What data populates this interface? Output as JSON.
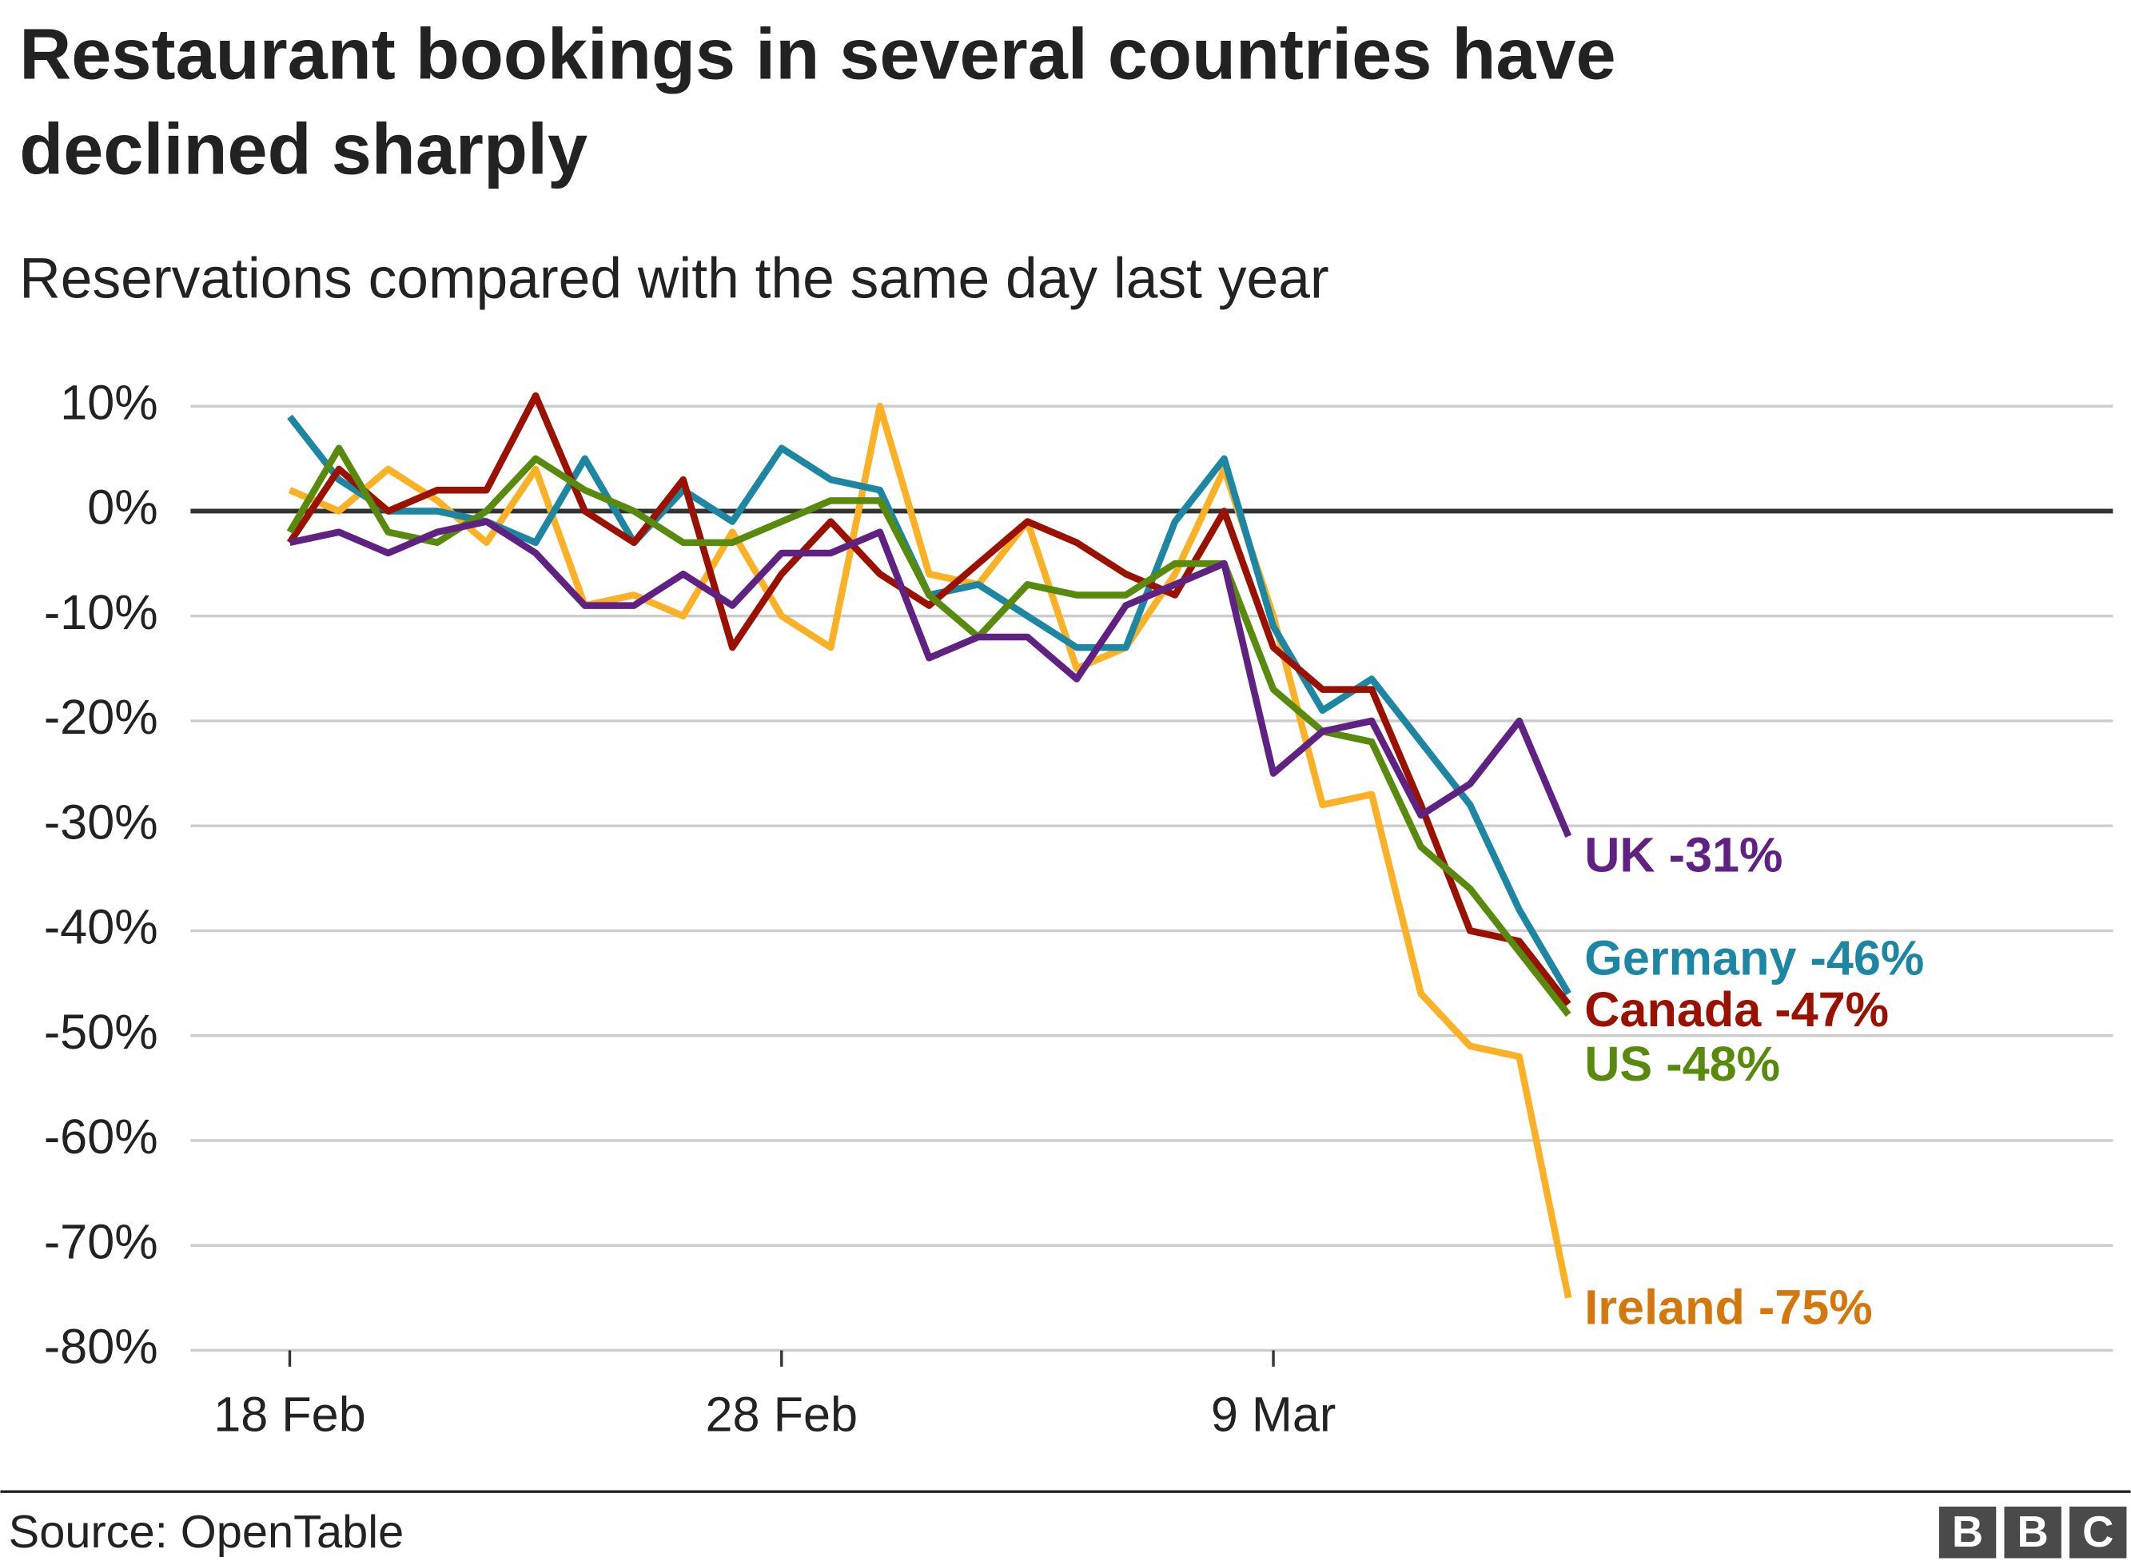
{
  "chart_data": {
    "type": "line",
    "title": [
      "Restaurant bookings in several countries have",
      "declined sharply"
    ],
    "subtitle": "Reservations compared with the same day last year",
    "categories": [
      "18 Feb",
      null,
      null,
      null,
      null,
      null,
      null,
      null,
      null,
      null,
      "28 Feb",
      null,
      null,
      null,
      null,
      null,
      null,
      null,
      null,
      null,
      "9 Mar",
      null,
      null,
      null,
      null,
      null,
      null
    ],
    "ylim": [
      -80,
      10
    ],
    "yticks": [
      {
        "value": 10,
        "label": "10%"
      },
      {
        "value": 0,
        "label": "0%"
      },
      {
        "value": -10,
        "label": "-10%"
      },
      {
        "value": -20,
        "label": "-20%"
      },
      {
        "value": -30,
        "label": "-30%"
      },
      {
        "value": -40,
        "label": "-40%"
      },
      {
        "value": -50,
        "label": "-50%"
      },
      {
        "value": -60,
        "label": "-60%"
      },
      {
        "value": -70,
        "label": "-70%"
      },
      {
        "value": -80,
        "label": "-80%"
      }
    ],
    "grid": true,
    "series": [
      {
        "name": "Ireland",
        "label": "Ireland -75%",
        "color": "#fbb125",
        "label_color": "#d4780e",
        "values": [
          2,
          0,
          4,
          1,
          -3,
          4,
          -9,
          -8,
          -10,
          -2,
          -10,
          -13,
          10,
          -6,
          -7,
          -1,
          -15,
          -13,
          -6,
          4,
          -10,
          -28,
          -27,
          -46,
          -51,
          -52,
          -75
        ]
      },
      {
        "name": "Germany",
        "label": "Germany -46%",
        "color": "#1d87a3",
        "label_color": "#1d87a3",
        "values": [
          9,
          3,
          0,
          0,
          -1,
          -3,
          5,
          -3,
          2,
          -1,
          6,
          3,
          2,
          -8,
          -7,
          -10,
          -13,
          -13,
          -1,
          5,
          -11,
          -19,
          -16,
          -22,
          -28,
          -38,
          -46
        ]
      },
      {
        "name": "Canada",
        "label": "Canada -47%",
        "color": "#9a1100",
        "label_color": "#9a1100",
        "values": [
          -3,
          4,
          0,
          2,
          2,
          11,
          0,
          -3,
          3,
          -13,
          -6,
          -1,
          -6,
          -9,
          -5,
          -1,
          -3,
          -6,
          -8,
          0,
          -13,
          -17,
          -17,
          -28,
          -40,
          -41,
          -47
        ]
      },
      {
        "name": "US",
        "label": "US -48%",
        "color": "#588a0e",
        "label_color": "#588a0e",
        "values": [
          -2,
          6,
          -2,
          -3,
          0,
          5,
          2,
          0,
          -3,
          -3,
          -1,
          1,
          1,
          -8,
          -12,
          -7,
          -8,
          -8,
          -5,
          -5,
          -17,
          -21,
          -22,
          -32,
          -36,
          -42,
          -48
        ]
      },
      {
        "name": "UK",
        "label": "UK -31%",
        "color": "#5f2282",
        "label_color": "#5f2282",
        "values": [
          -3,
          -2,
          -4,
          -2,
          -1,
          -4,
          -9,
          -9,
          -6,
          -9,
          -4,
          -4,
          -2,
          -14,
          -12,
          -12,
          -16,
          -9,
          -7,
          -5,
          -25,
          -21,
          -20,
          -29,
          -26,
          -20,
          -31
        ]
      }
    ],
    "source": "Source: OpenTable",
    "logo": [
      "B",
      "B",
      "C"
    ]
  }
}
